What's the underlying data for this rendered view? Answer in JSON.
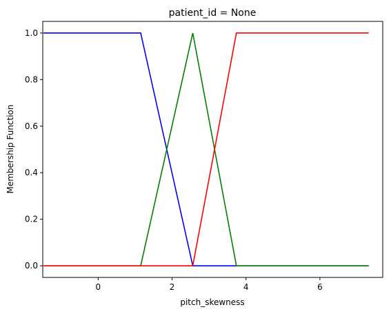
{
  "chart_data": {
    "type": "line",
    "title": "patient_id = None",
    "xlabel": "pitch_skewness",
    "ylabel": "Membership Function",
    "xlim": [
      -1.5,
      7.7
    ],
    "ylim": [
      -0.05,
      1.05
    ],
    "xticks": [
      0,
      2,
      4,
      6
    ],
    "yticks": [
      0.0,
      0.2,
      0.4,
      0.6,
      0.8,
      1.0
    ],
    "xtick_labels": [
      "0",
      "2",
      "4",
      "6"
    ],
    "ytick_labels": [
      "0.0",
      "0.2",
      "0.4",
      "0.6",
      "0.8",
      "1.0"
    ],
    "grid": false,
    "legend": "none",
    "series": [
      {
        "color": "#0000ff",
        "x": [
          -1.48,
          1.15,
          2.56,
          7.32
        ],
        "y": [
          1,
          1,
          0,
          0
        ]
      },
      {
        "color": "#008000",
        "x": [
          -1.48,
          1.15,
          2.56,
          3.74,
          7.32
        ],
        "y": [
          0,
          0,
          1,
          0,
          0
        ]
      },
      {
        "color": "#ff0000",
        "x": [
          -1.48,
          2.56,
          3.74,
          7.32
        ],
        "y": [
          0,
          0,
          1,
          1
        ]
      }
    ]
  }
}
